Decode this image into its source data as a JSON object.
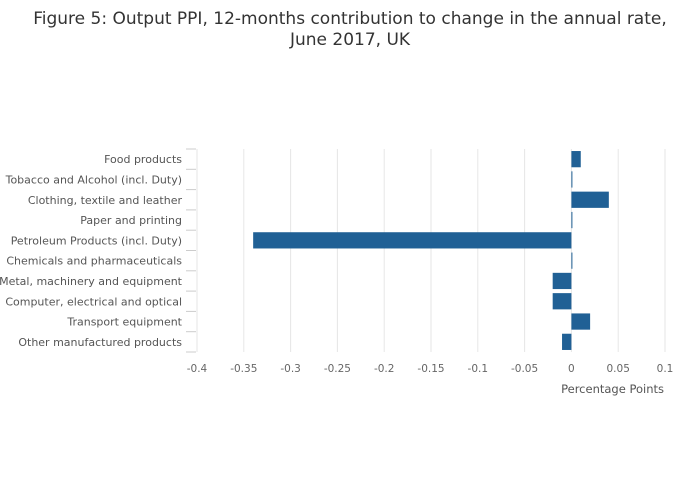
{
  "chart_data": {
    "type": "bar",
    "orientation": "horizontal",
    "title_lines": [
      "Figure 5: Output PPI, 12-months contribution to change in the annual rate,",
      "June 2017, UK"
    ],
    "categories": [
      "Food products",
      "Tobacco and Alcohol (incl. Duty)",
      "Clothing, textile and leather",
      "Paper and printing",
      "Petroleum Products (incl. Duty)",
      "Chemicals and pharmaceuticals",
      "Metal, machinery and equipment",
      "Computer, electrical and optical",
      "Transport equipment",
      "Other manufactured products"
    ],
    "values": [
      0.01,
      0.0,
      0.04,
      0.0,
      -0.34,
      0.0,
      -0.02,
      -0.02,
      0.02,
      -0.01
    ],
    "xlabel": "Percentage Points",
    "xlim": [
      -0.4,
      0.1
    ],
    "xticks": [
      -0.4,
      -0.35,
      -0.3,
      -0.25,
      -0.2,
      -0.15,
      -0.1,
      -0.05,
      0,
      0.05,
      0.1
    ],
    "xtick_labels": [
      "-0.4",
      "-0.35",
      "-0.3",
      "-0.25",
      "-0.2",
      "-0.15",
      "-0.1",
      "-0.05",
      "0",
      "0.05",
      "0.1"
    ],
    "grid": true,
    "bar_color": "#206095"
  }
}
